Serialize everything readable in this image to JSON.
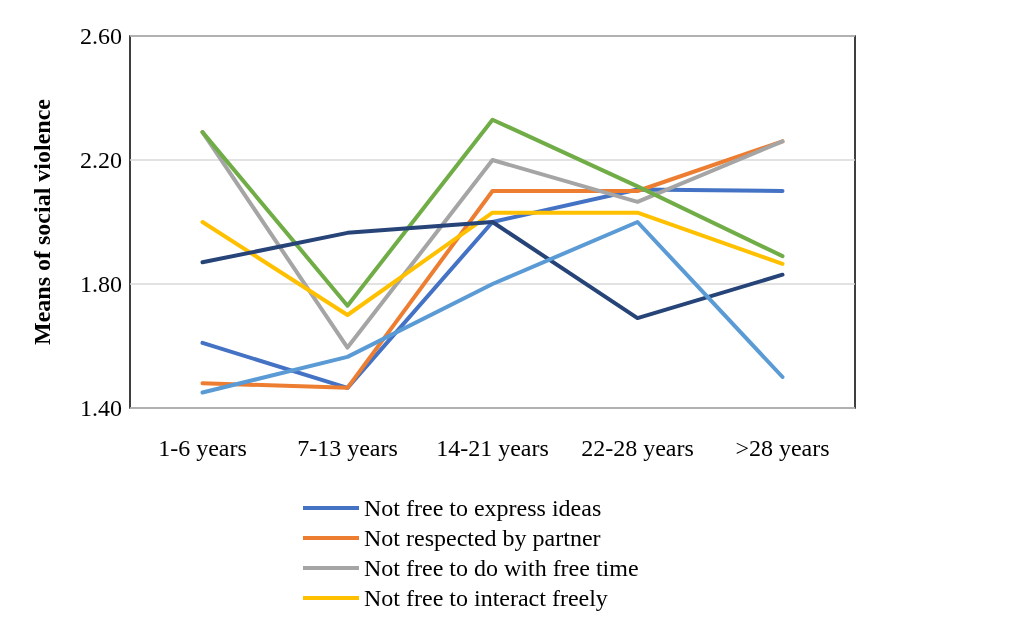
{
  "chart_data": {
    "type": "line",
    "ylabel": "Means of social violence",
    "categories": [
      "1-6 years",
      "7-13 years",
      "14-21 years",
      "22-28 years",
      ">28 years"
    ],
    "ylim": [
      1.4,
      2.6
    ],
    "yticks": [
      {
        "value": 1.4,
        "label": "1.40"
      },
      {
        "value": 1.8,
        "label": "1.80"
      },
      {
        "value": 2.2,
        "label": "2.20"
      },
      {
        "value": 2.6,
        "label": "2.60"
      }
    ],
    "grid": "y",
    "legend": "bottom",
    "marker": "none",
    "line_style": "solid",
    "series": [
      {
        "name": "Not free to express ideas",
        "color": "#4472c4",
        "values": [
          1.61,
          1.465,
          2.0,
          2.105,
          2.1
        ]
      },
      {
        "name": "Not respected by partner",
        "color": "#ed7d31",
        "values": [
          1.48,
          1.465,
          2.1,
          2.1,
          2.26
        ]
      },
      {
        "name": "Not free to do with free time",
        "color": "#a5a5a5",
        "values": [
          2.29,
          1.595,
          2.2,
          2.065,
          2.26
        ]
      },
      {
        "name": "Not free to interact freely",
        "color": "#ffc000",
        "values": [
          2.0,
          1.7,
          2.03,
          2.03,
          1.865
        ]
      },
      {
        "color": "#70ad47",
        "values": [
          2.29,
          1.73,
          2.33,
          2.115,
          1.89
        ]
      },
      {
        "color": "#264478",
        "values": [
          1.87,
          1.965,
          2.0,
          1.69,
          1.83
        ]
      },
      {
        "color": "#5b9bd5",
        "values": [
          1.45,
          1.565,
          1.8,
          2.0,
          1.5
        ]
      }
    ]
  }
}
